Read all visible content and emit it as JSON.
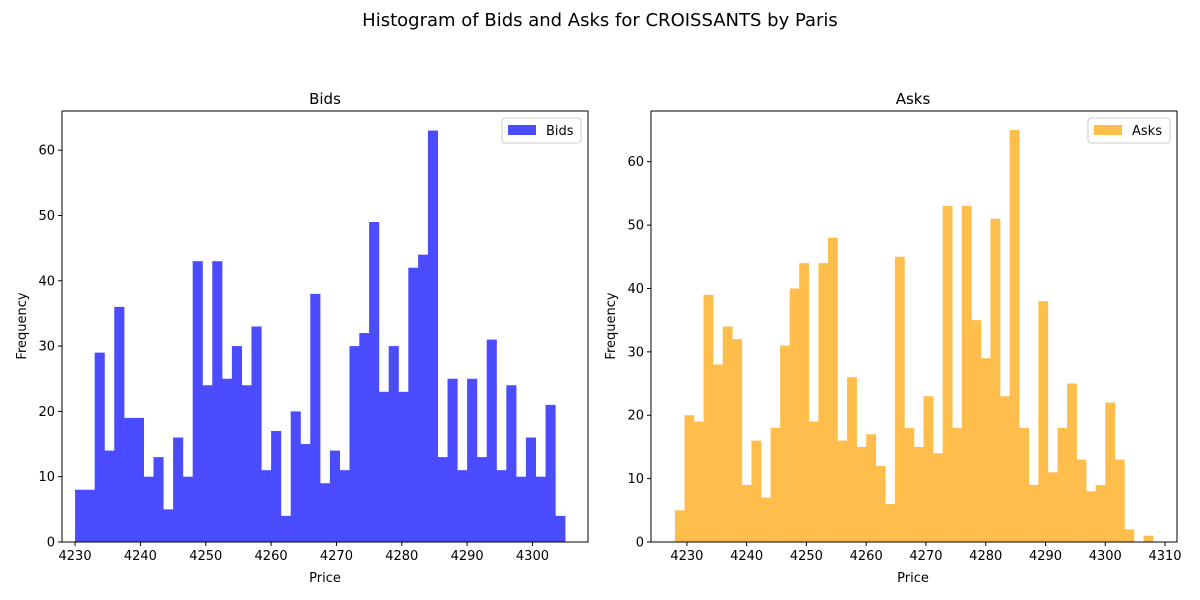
{
  "figure": {
    "suptitle": "Histogram of Bids and Asks for CROISSANTS by Paris"
  },
  "chart_data": [
    {
      "type": "bar",
      "title": "Bids",
      "xlabel": "Price",
      "ylabel": "Frequency",
      "legend": {
        "label": "Bids",
        "placement": "top-right"
      },
      "color": "#4b4bff",
      "xlim": [
        4228,
        4308.5
      ],
      "ylim": [
        0,
        66
      ],
      "xticks": [
        4230,
        4240,
        4250,
        4260,
        4270,
        4280,
        4290,
        4300
      ],
      "yticks": [
        0,
        10,
        20,
        30,
        40,
        50,
        60
      ],
      "bin_start": 4230,
      "bin_width": 1.5,
      "counts": [
        8,
        8,
        29,
        14,
        36,
        19,
        19,
        10,
        13,
        5,
        16,
        10,
        43,
        24,
        43,
        25,
        30,
        24,
        33,
        11,
        17,
        4,
        20,
        15,
        38,
        9,
        14,
        11,
        30,
        32,
        49,
        23,
        30,
        23,
        42,
        44,
        63,
        13,
        25,
        11,
        25,
        13,
        31,
        11,
        24,
        10,
        16,
        10,
        21,
        4
      ]
    },
    {
      "type": "bar",
      "title": "Asks",
      "xlabel": "Price",
      "ylabel": "Frequency",
      "legend": {
        "label": "Asks",
        "placement": "top-right"
      },
      "color": "#ffbe4b",
      "xlim": [
        4224,
        4312
      ],
      "ylim": [
        0,
        68
      ],
      "xticks": [
        4230,
        4240,
        4250,
        4260,
        4270,
        4280,
        4290,
        4300,
        4310
      ],
      "yticks": [
        0,
        10,
        20,
        30,
        40,
        50,
        60
      ],
      "bin_start": 4228,
      "bin_width": 1.6,
      "counts": [
        5,
        20,
        19,
        39,
        28,
        34,
        32,
        9,
        16,
        7,
        18,
        31,
        40,
        44,
        19,
        44,
        48,
        16,
        26,
        15,
        17,
        12,
        6,
        45,
        18,
        15,
        23,
        14,
        53,
        18,
        53,
        35,
        29,
        51,
        23,
        65,
        18,
        9,
        38,
        11,
        18,
        25,
        13,
        8,
        9,
        22,
        13,
        2,
        0,
        1
      ]
    }
  ]
}
